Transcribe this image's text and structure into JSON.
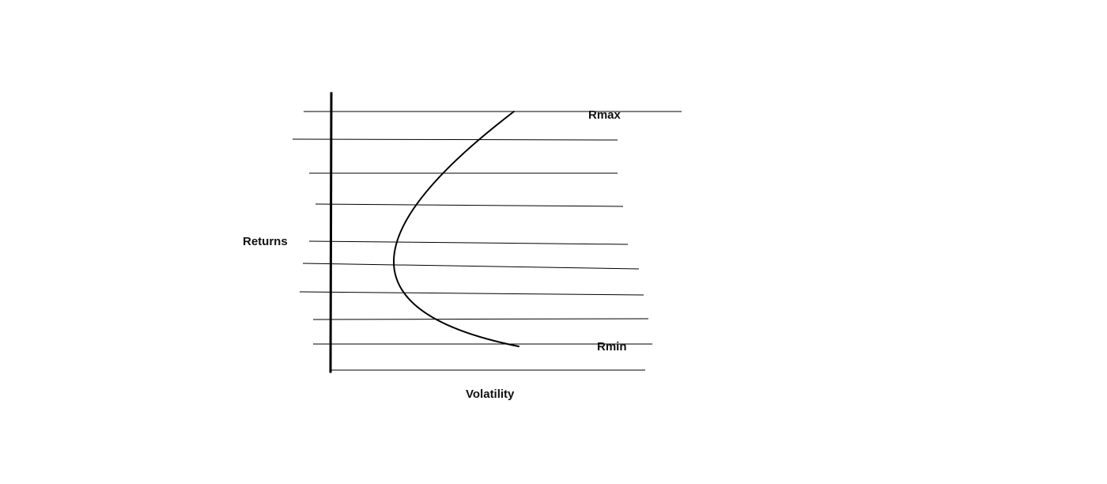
{
  "labels": {
    "y_axis": "Returns",
    "x_axis": "Volatility",
    "top_curve_end": "Rmax",
    "bottom_curve_end": "Rmin"
  },
  "colors": {
    "background": "#ffffff",
    "ink": "#000000",
    "text": "#111111"
  },
  "shapes": {
    "vertical_axis": "thick-vertical-line",
    "horizontal_lines": "ten-parallel-lines",
    "frontier": "sideways-parabola"
  }
}
